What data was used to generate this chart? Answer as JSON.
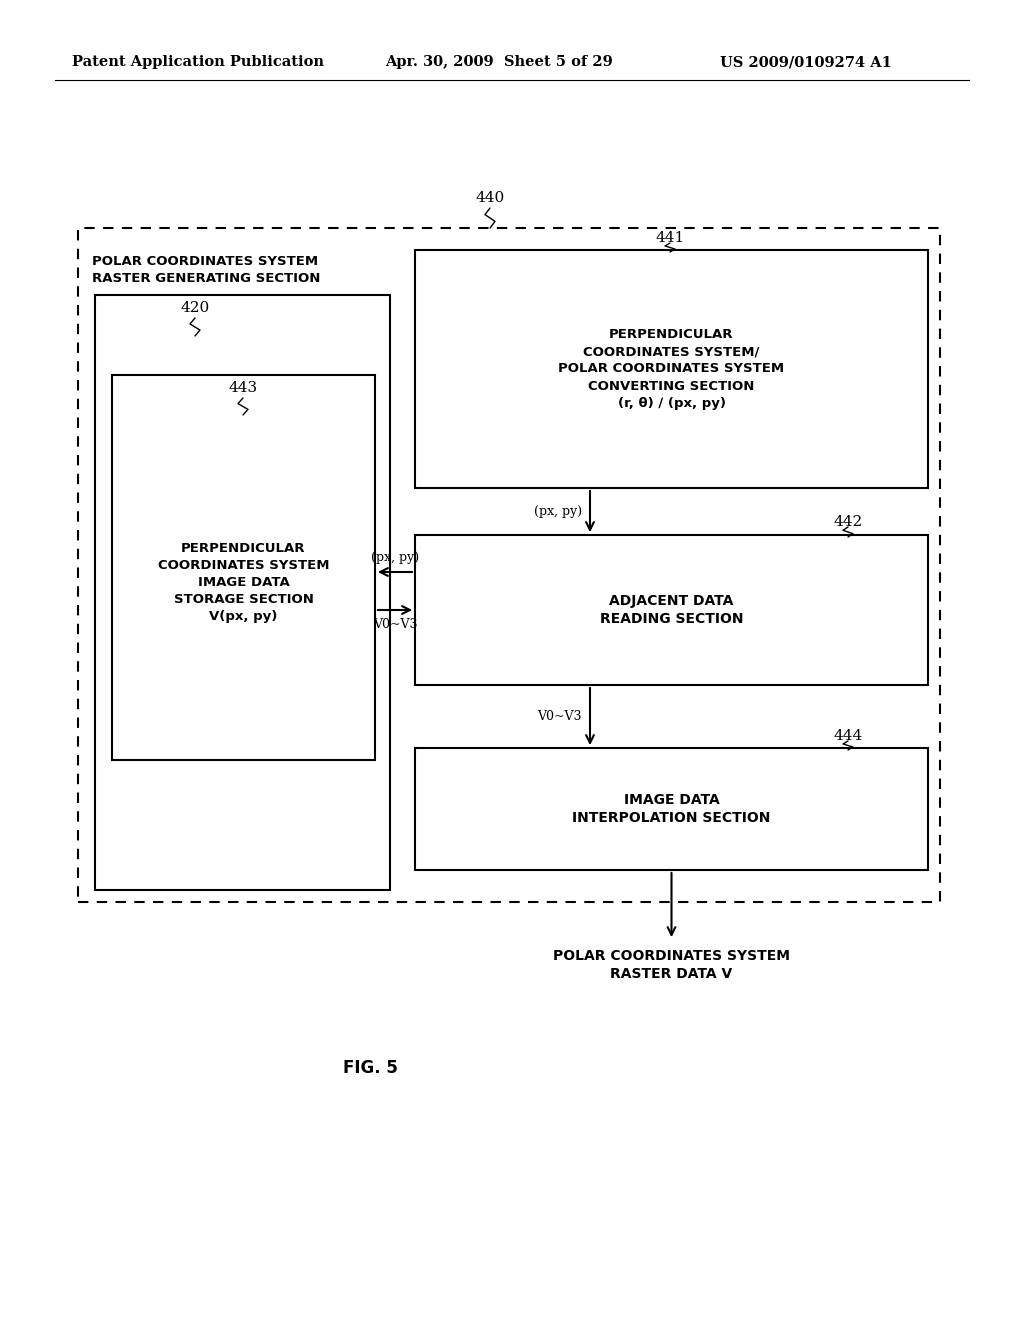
{
  "bg_color": "#ffffff",
  "header_left": "Patent Application Publication",
  "header_mid": "Apr. 30, 2009  Sheet 5 of 29",
  "header_right": "US 2009/0109274 A1",
  "fig_label": "FIG. 5",
  "outer_label": "440",
  "outer_box_label": "POLAR COORDINATES SYSTEM\nRASTER GENERATING SECTION",
  "box_441_label": "441",
  "box_441_text": "PERPENDICULAR\nCOORDINATES SYSTEM/\nPOLAR COORDINATES SYSTEM\nCONVERTING SECTION\n(r, θ) ∕ (px, py)",
  "box_442_label": "442",
  "box_442_text": "ADJACENT DATA\nREADING SECTION",
  "box_443_label": "443",
  "box_443_text": "PERPENDICULAR\nCOORDINATES SYSTEM\nIMAGE DATA\nSTORAGE SECTION\nV(px, py)",
  "box_444_label": "444",
  "box_444_text": "IMAGE DATA\nINTERPOLATION SECTION",
  "box_420_label": "420",
  "bottom_label_text": "POLAR COORDINATES SYSTEM\nRASTER DATA V",
  "arrow_px_py_down": "(px, py)",
  "arrow_px_py_left": "(px, py)",
  "arrow_v0v3_right": "V0~V3",
  "arrow_v0v3_down": "V0~V3"
}
